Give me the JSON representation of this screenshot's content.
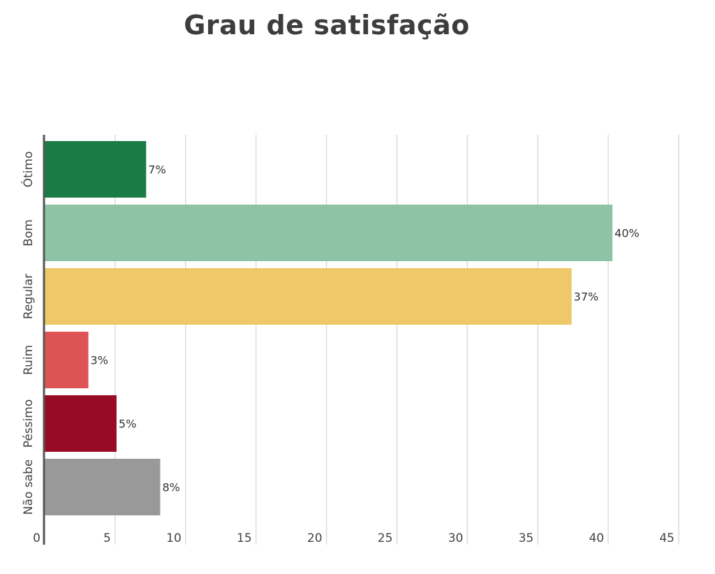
{
  "chart_data": {
    "type": "bar",
    "orientation": "horizontal",
    "title": "Grau de satisfação",
    "xlabel": "",
    "ylabel": "",
    "categories": [
      "Ótimo",
      "Bom",
      "Regular",
      "Ruim",
      "Péssimo",
      "Não sabe"
    ],
    "values": [
      7.2,
      40.3,
      37.4,
      3.1,
      5.1,
      8.2
    ],
    "data_labels": [
      "7%",
      "40%",
      "37%",
      "3%",
      "5%",
      "8%"
    ],
    "colors": [
      "#1b7b45",
      "#8fc3a6",
      "#efc869",
      "#dd5454",
      "#990a26",
      "#999999"
    ],
    "xlim": [
      0,
      45
    ],
    "x_ticks": [
      0,
      5,
      10,
      15,
      20,
      25,
      30,
      35,
      40,
      45
    ],
    "grid": true,
    "legend": "none"
  }
}
